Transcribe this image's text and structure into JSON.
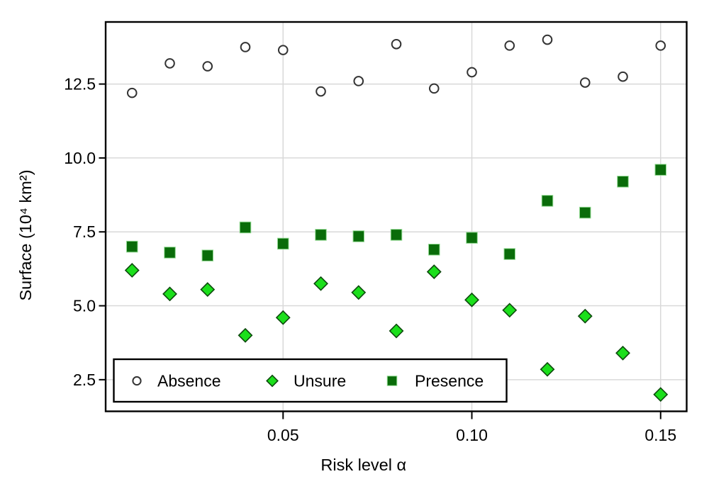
{
  "chart_data": {
    "type": "scatter",
    "title": "",
    "xlabel": "Risk level α",
    "ylabel": "Surface (10⁴ km²)",
    "xlim": [
      0.003,
      0.1569
    ],
    "ylim": [
      1.43,
      14.6
    ],
    "grid": true,
    "xticks": [
      0.05,
      0.1,
      0.15
    ],
    "xtick_labels": [
      "0.05",
      "0.10",
      "0.15"
    ],
    "yticks": [
      2.5,
      5.0,
      7.5,
      10.0,
      12.5
    ],
    "ytick_labels": [
      "2.5",
      "5.0",
      "7.5",
      "10.0",
      "12.5"
    ],
    "x": [
      0.01,
      0.02,
      0.03,
      0.04,
      0.05,
      0.06,
      0.07,
      0.08,
      0.09,
      0.1,
      0.11,
      0.12,
      0.13,
      0.14,
      0.15
    ],
    "series": [
      {
        "name": "Absence",
        "marker": "circle",
        "fill": "#ffffff",
        "stroke": "#333333",
        "values": [
          12.2,
          13.2,
          13.1,
          13.75,
          13.65,
          12.25,
          12.6,
          13.85,
          12.35,
          12.9,
          13.8,
          14.0,
          12.55,
          12.75,
          13.8
        ]
      },
      {
        "name": "Unsure",
        "marker": "diamond",
        "fill": "#1bdf1b",
        "stroke": "#0d490d",
        "values": [
          6.2,
          5.4,
          5.55,
          4.0,
          4.6,
          5.75,
          5.45,
          4.15,
          6.15,
          5.2,
          4.85,
          2.85,
          4.65,
          3.4,
          2.0
        ]
      },
      {
        "name": "Presence",
        "marker": "square",
        "fill": "#0a6c0a",
        "stroke": "#8fd98f",
        "values": [
          7.0,
          6.8,
          6.7,
          7.65,
          7.1,
          7.4,
          7.35,
          7.4,
          6.9,
          7.3,
          6.75,
          8.55,
          8.15,
          9.2,
          9.6
        ]
      }
    ],
    "legend_position": "bottom-left",
    "legend_labels": [
      "Absence",
      "Unsure",
      "Presence"
    ],
    "colors": {
      "grid": "#d9d9d9",
      "axis": "#000000",
      "background": "#ffffff"
    }
  }
}
